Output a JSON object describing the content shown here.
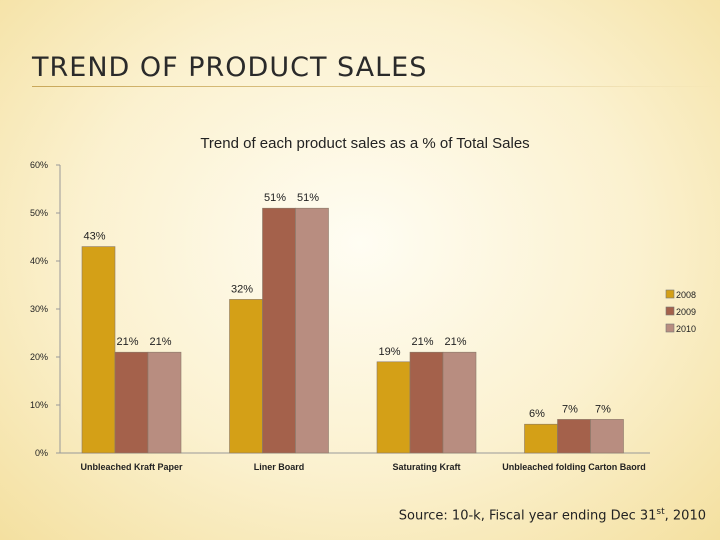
{
  "slide": {
    "title": "TREND OF PRODUCT SALES",
    "source_prefix": "Source: 10-k, Fiscal year ending Dec 31",
    "source_sup": "st",
    "source_suffix": ", 2010"
  },
  "chart_data": {
    "type": "bar",
    "title": "Trend of each product sales as a % of Total Sales",
    "xlabel": "",
    "ylabel": "",
    "ylim": [
      0,
      60
    ],
    "y_ticks": [
      0,
      10,
      20,
      30,
      40,
      50,
      60
    ],
    "y_tick_labels": [
      "0%",
      "10%",
      "20%",
      "30%",
      "40%",
      "50%",
      "60%"
    ],
    "categories": [
      "Unbleached Kraft Paper",
      "Liner Board",
      "Saturating Kraft",
      "Unbleached folding Carton Baord"
    ],
    "series": [
      {
        "name": "2008",
        "color": "#d4a017",
        "values": [
          43,
          32,
          19,
          6
        ],
        "labels": [
          "43%",
          "32%",
          "19%",
          "6%"
        ]
      },
      {
        "name": "2009",
        "color": "#a4614b",
        "values": [
          21,
          51,
          21,
          7
        ],
        "labels": [
          "21%",
          "51%",
          "21%",
          "7%"
        ]
      },
      {
        "name": "2010",
        "color": "#b88d80",
        "values": [
          21,
          51,
          21,
          7
        ],
        "labels": [
          "21%",
          "51%",
          "21%",
          "7%"
        ]
      }
    ],
    "legend_position": "right",
    "grid": false
  }
}
